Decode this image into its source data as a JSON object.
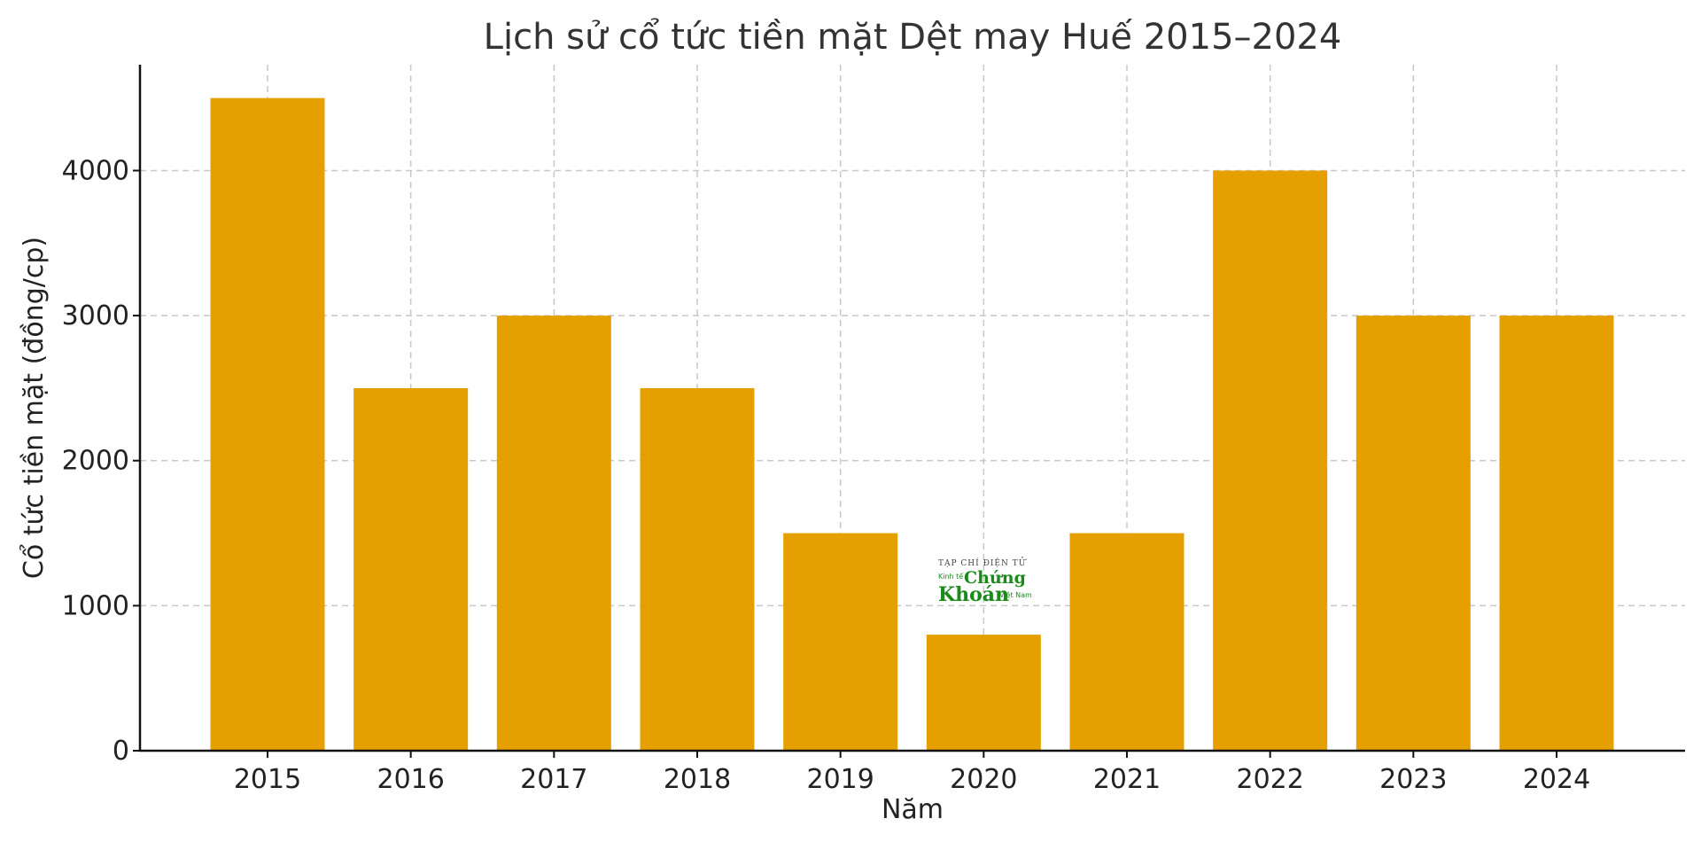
{
  "chart_data": {
    "type": "bar",
    "title": "Lịch sử cổ tức tiền mặt Dệt may Huế 2015–2024",
    "xlabel": "Năm",
    "ylabel": "Cổ tức tiền mặt (đồng/cp)",
    "categories": [
      "2015",
      "2016",
      "2017",
      "2018",
      "2019",
      "2020",
      "2021",
      "2022",
      "2023",
      "2024"
    ],
    "values": [
      4500,
      2500,
      3000,
      2500,
      1500,
      800,
      1500,
      4000,
      3000,
      3000
    ],
    "ylim": [
      0,
      4730
    ],
    "yticks": [
      0,
      1000,
      2000,
      3000,
      4000
    ],
    "grid": true,
    "bar_color": "#E5A000"
  },
  "watermark": {
    "line1": "TẠP CHÍ ĐIỆN TỬ",
    "line2a": "Kinh tế",
    "line2b": "Chứng",
    "line3a": "Khoán",
    "line3b": "Việt Nam"
  }
}
